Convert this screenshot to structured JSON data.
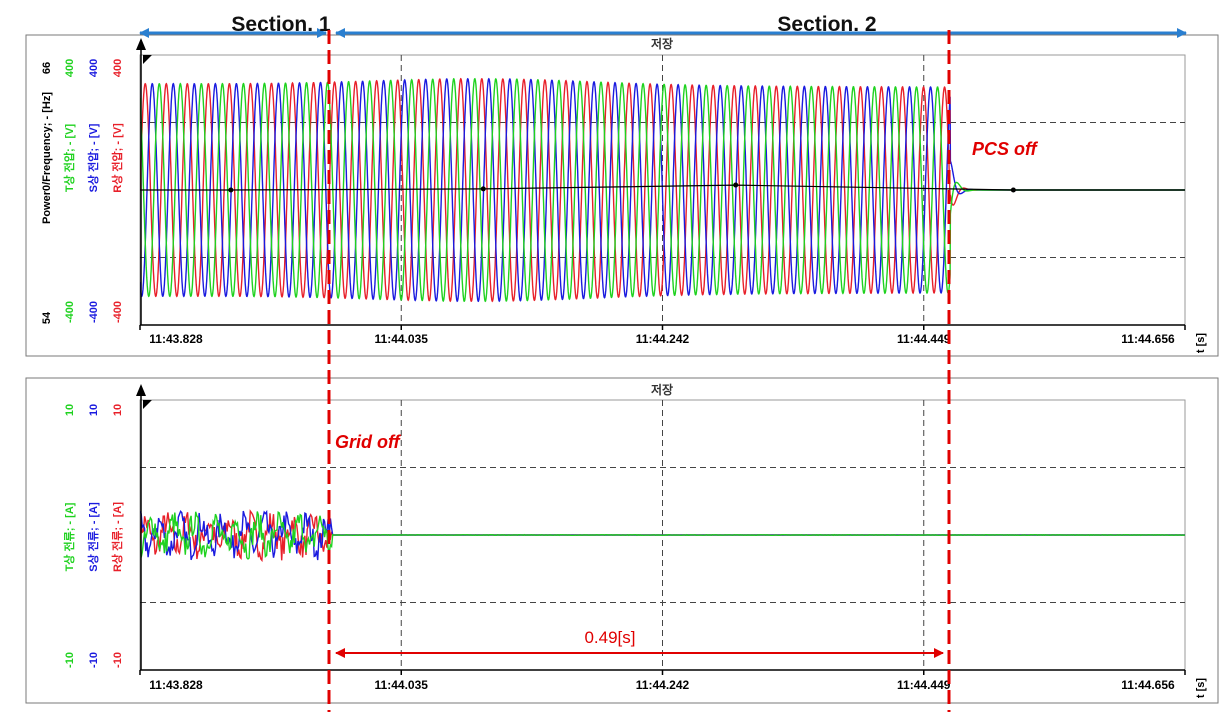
{
  "annotations": {
    "section1": "Section. 1",
    "section2": "Section. 2",
    "pcs_off": "PCS off",
    "grid_off": "Grid off",
    "duration": "0.49[s]"
  },
  "colors": {
    "r_phase": "#e8202a",
    "s_phase": "#1a1adf",
    "t_phase": "#1fd21f",
    "freq": "#000000",
    "annotation": "#e00000",
    "section_arrow": "#2a7fd0"
  },
  "chart_data": [
    {
      "type": "line",
      "title": "저장",
      "xlabel": "t [s]",
      "x_ticks": [
        "11:43.828",
        "11:44.035",
        "11:44.242",
        "11:44.449",
        "11:44.656"
      ],
      "xlim": [
        43.828,
        44.656
      ],
      "axes": [
        {
          "label": "Power0/Frequency; - [Hz]",
          "color": "#000000",
          "max": "66",
          "min": "54"
        },
        {
          "label": "T상 전압; - [V]",
          "color": "#1fd21f",
          "max": "400",
          "min": "-400"
        },
        {
          "label": "S상 전압; - [V]",
          "color": "#1a1adf",
          "max": "400",
          "min": "-400"
        },
        {
          "label": "R상 전압; - [V]",
          "color": "#e8202a",
          "max": "400",
          "min": "-400"
        }
      ],
      "ylim": [
        -400,
        400
      ],
      "series": [
        {
          "name": "R상 전압",
          "kind": "sine",
          "amplitude": 315,
          "frequency_hz": 60,
          "phase_deg": 0,
          "end_time": 44.47
        },
        {
          "name": "S상 전압",
          "kind": "sine",
          "amplitude": 315,
          "frequency_hz": 60,
          "phase_deg": -120,
          "end_time": 44.47
        },
        {
          "name": "T상 전압",
          "kind": "sine",
          "amplitude": 315,
          "frequency_hz": 60,
          "phase_deg": 120,
          "end_time": 44.47
        },
        {
          "name": "Power0/Frequency",
          "kind": "line",
          "x": [
            43.828,
            43.9,
            44.1,
            44.3,
            44.4,
            44.47,
            44.52,
            44.656
          ],
          "y": [
            60.0,
            60.0,
            60.05,
            60.22,
            60.12,
            60.05,
            60.0,
            60.0
          ]
        }
      ]
    },
    {
      "type": "line",
      "title": "저장",
      "xlabel": "t [s]",
      "x_ticks": [
        "11:43.828",
        "11:44.035",
        "11:44.242",
        "11:44.449",
        "11:44.656"
      ],
      "xlim": [
        43.828,
        44.656
      ],
      "axes": [
        {
          "label": "T상 전류; - [A]",
          "color": "#1fd21f",
          "max": "10",
          "min": "-10"
        },
        {
          "label": "S상 전류; - [A]",
          "color": "#1a1adf",
          "max": "10",
          "min": "-10"
        },
        {
          "label": "R상 전류; - [A]",
          "color": "#e8202a",
          "max": "10",
          "min": "-10"
        }
      ],
      "ylim": [
        -10,
        10
      ],
      "series": [
        {
          "name": "R상 전류",
          "kind": "noise",
          "amplitude": 1.6,
          "end_time": 43.98,
          "after": 0
        },
        {
          "name": "S상 전류",
          "kind": "noise",
          "amplitude": 1.6,
          "end_time": 43.98,
          "after": 0
        },
        {
          "name": "T상 전류",
          "kind": "noise",
          "amplitude": 1.6,
          "end_time": 43.98,
          "after": 0
        }
      ]
    }
  ]
}
